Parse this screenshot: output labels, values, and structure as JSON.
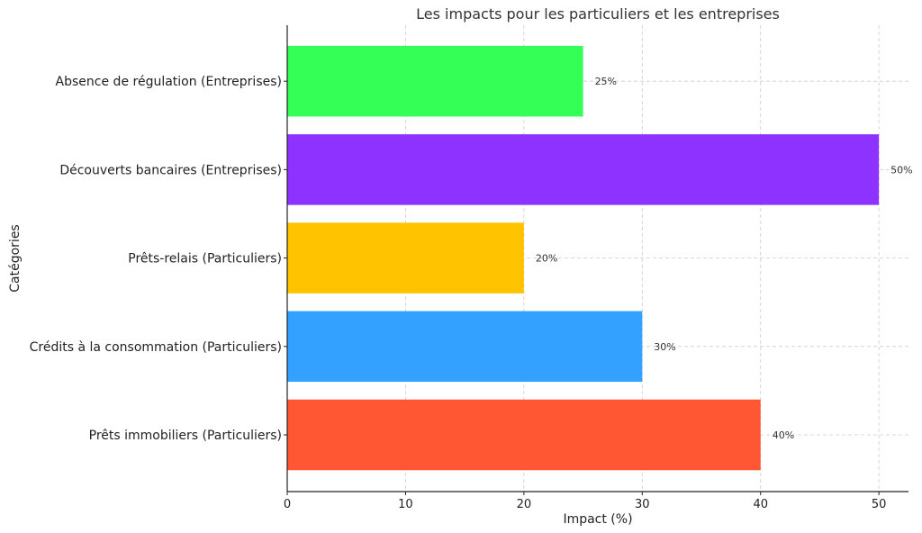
{
  "chart_data": {
    "type": "bar",
    "orientation": "horizontal",
    "title": "Les impacts pour les particuliers et les entreprises",
    "xlabel": "Impact (%)",
    "ylabel": "Catégories",
    "categories": [
      "Prêts immobiliers (Particuliers)",
      "Crédits à la consommation (Particuliers)",
      "Prêts-relais (Particuliers)",
      "Découverts bancaires (Entreprises)",
      "Absence de régulation (Entreprises)"
    ],
    "values": [
      40,
      30,
      20,
      50,
      25
    ],
    "data_labels": [
      "40%",
      "30%",
      "20%",
      "50%",
      "25%"
    ],
    "colors": [
      "#ff5733",
      "#33a1ff",
      "#ffc300",
      "#8e33ff",
      "#33ff57"
    ],
    "xlim": [
      0,
      52.5
    ],
    "xticks": [
      0,
      10,
      20,
      30,
      40,
      50
    ],
    "grid": true
  }
}
